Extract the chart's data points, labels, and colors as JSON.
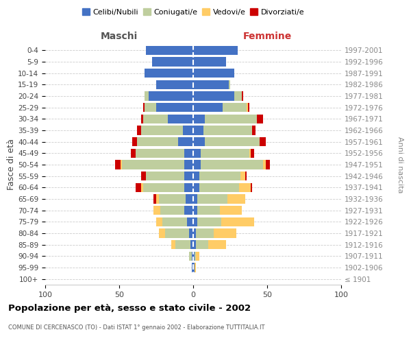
{
  "age_groups": [
    "100+",
    "95-99",
    "90-94",
    "85-89",
    "80-84",
    "75-79",
    "70-74",
    "65-69",
    "60-64",
    "55-59",
    "50-54",
    "45-49",
    "40-44",
    "35-39",
    "30-34",
    "25-29",
    "20-24",
    "15-19",
    "10-14",
    "5-9",
    "0-4"
  ],
  "birth_years": [
    "≤ 1901",
    "1902-1906",
    "1907-1911",
    "1912-1916",
    "1917-1921",
    "1922-1926",
    "1927-1931",
    "1932-1936",
    "1937-1941",
    "1942-1946",
    "1947-1951",
    "1952-1956",
    "1957-1961",
    "1962-1966",
    "1967-1971",
    "1972-1976",
    "1977-1981",
    "1982-1986",
    "1987-1991",
    "1992-1996",
    "1997-2001"
  ],
  "male": {
    "celibi": [
      0,
      1,
      1,
      2,
      3,
      4,
      6,
      5,
      6,
      6,
      6,
      6,
      10,
      7,
      17,
      25,
      30,
      25,
      33,
      28,
      32
    ],
    "coniugati": [
      0,
      0,
      2,
      10,
      16,
      17,
      16,
      18,
      28,
      26,
      42,
      33,
      28,
      28,
      17,
      8,
      3,
      0,
      0,
      0,
      0
    ],
    "vedovi": [
      0,
      0,
      0,
      3,
      4,
      4,
      5,
      2,
      1,
      0,
      1,
      0,
      0,
      0,
      0,
      0,
      0,
      0,
      0,
      0,
      0
    ],
    "divorziati": [
      0,
      0,
      0,
      0,
      0,
      0,
      0,
      2,
      4,
      3,
      4,
      3,
      3,
      3,
      1,
      1,
      0,
      0,
      0,
      0,
      0
    ]
  },
  "female": {
    "nubili": [
      0,
      1,
      1,
      2,
      2,
      3,
      3,
      3,
      4,
      4,
      5,
      5,
      8,
      7,
      8,
      20,
      28,
      24,
      28,
      22,
      30
    ],
    "coniugate": [
      0,
      0,
      1,
      8,
      12,
      16,
      15,
      20,
      27,
      28,
      42,
      33,
      37,
      33,
      35,
      16,
      5,
      1,
      0,
      0,
      0
    ],
    "vedove": [
      0,
      1,
      2,
      12,
      15,
      22,
      15,
      12,
      8,
      3,
      2,
      1,
      0,
      0,
      0,
      1,
      0,
      0,
      0,
      0,
      0
    ],
    "divorziate": [
      0,
      0,
      0,
      0,
      0,
      0,
      0,
      0,
      1,
      1,
      3,
      2,
      4,
      2,
      4,
      1,
      1,
      0,
      0,
      0,
      0
    ]
  },
  "colors": {
    "celibi_nubili": "#4472C4",
    "coniugati_e": "#BFCE9E",
    "vedovi_e": "#FFCC66",
    "divorziati_e": "#CC0000"
  },
  "xlim": 100,
  "title": "Popolazione per età, sesso e stato civile - 2002",
  "subtitle": "COMUNE DI CERCENASCO (TO) - Dati ISTAT 1° gennaio 2002 - Elaborazione TUTTITALIA.IT",
  "ylabel": "Fasce di età",
  "right_label": "Anni di nascita",
  "maschi_label": "Maschi",
  "femmine_label": "Femmine",
  "legend_labels": [
    "Celibi/Nubili",
    "Coniugati/e",
    "Vedovi/e",
    "Divorziati/e"
  ],
  "bg_color": "#FFFFFF",
  "grid_color": "#CCCCCC"
}
